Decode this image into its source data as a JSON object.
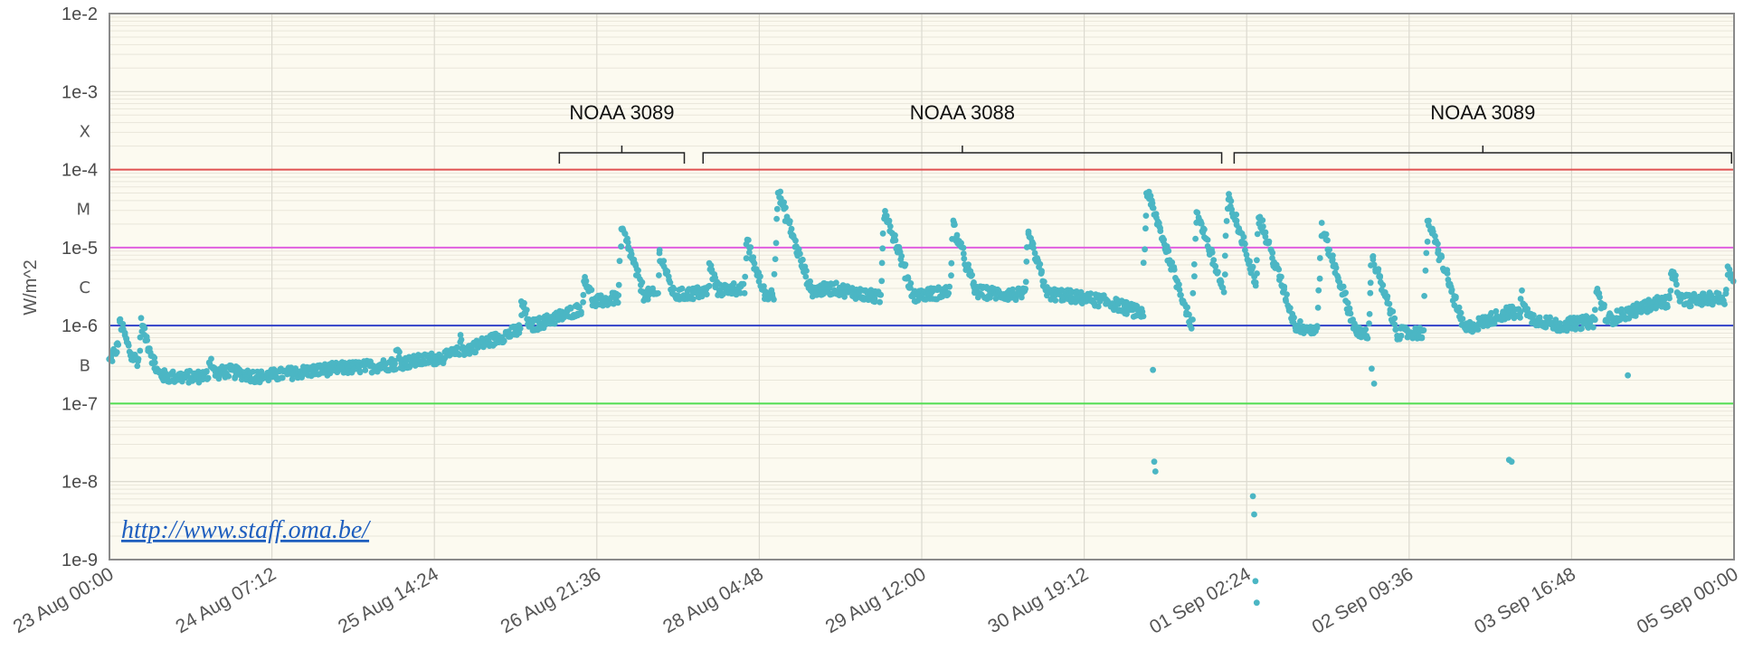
{
  "chart_data": {
    "type": "scatter",
    "title": "",
    "ylabel": "W/m^2",
    "xlabel": "",
    "y_scale": "log",
    "ylim": [
      "1e-9",
      "1e-2"
    ],
    "y_ticks": [
      "1e-2",
      "1e-3",
      "1e-4",
      "1e-5",
      "1e-6",
      "1e-7",
      "1e-8",
      "1e-9"
    ],
    "flare_classes": [
      "X",
      "M",
      "C",
      "B"
    ],
    "x_ticks": [
      "23 Aug 00:00",
      "24 Aug 07:12",
      "25 Aug 14:24",
      "26 Aug 21:36",
      "28 Aug 04:48",
      "29 Aug 12:00",
      "30 Aug 19:12",
      "01 Sep 02:24",
      "02 Sep 09:36",
      "03 Sep 16:48",
      "05 Sep 00:00"
    ],
    "x_range_days": [
      0,
      13
    ],
    "grid": true,
    "threshold_lines": [
      {
        "value": "1e-4",
        "color": "#e05050"
      },
      {
        "value": "1e-5",
        "color": "#e060e0"
      },
      {
        "value": "1e-6",
        "color": "#3040c8"
      },
      {
        "value": "1e-7",
        "color": "#50dd50"
      }
    ],
    "series": [
      {
        "color": "#4bb6c4",
        "flux_background": [
          [
            0.0,
            3.5e-07
          ],
          [
            0.08,
            6e-07
          ],
          [
            0.18,
            4e-07
          ],
          [
            0.3,
            3e-07
          ],
          [
            0.45,
            2.2e-07
          ],
          [
            0.7,
            2.2e-07
          ],
          [
            0.95,
            2.6e-07
          ],
          [
            1.2,
            2.2e-07
          ],
          [
            1.5,
            2.5e-07
          ],
          [
            1.8,
            2.8e-07
          ],
          [
            2.1,
            3e-07
          ],
          [
            2.4,
            3.4e-07
          ],
          [
            2.7,
            4e-07
          ],
          [
            3.0,
            6e-07
          ],
          [
            3.3,
            9e-07
          ],
          [
            3.6,
            1.3e-06
          ],
          [
            3.9,
            2e-06
          ],
          [
            4.2,
            2.5e-06
          ],
          [
            4.6,
            2.5e-06
          ],
          [
            5.0,
            3e-06
          ],
          [
            5.3,
            2.5e-06
          ],
          [
            5.8,
            3e-06
          ],
          [
            6.2,
            2.2e-06
          ],
          [
            6.8,
            2.8e-06
          ],
          [
            7.2,
            2.5e-06
          ],
          [
            7.6,
            2.5e-06
          ],
          [
            8.0,
            2e-06
          ],
          [
            8.4,
            1.2e-06
          ],
          [
            8.8,
            1e-06
          ],
          [
            9.2,
            1.3e-06
          ],
          [
            9.6,
            9e-07
          ],
          [
            10.0,
            8e-07
          ],
          [
            10.4,
            8e-07
          ],
          [
            10.8,
            8.5e-07
          ],
          [
            11.2,
            1.5e-06
          ],
          [
            11.6,
            1e-06
          ],
          [
            12.0,
            1.2e-06
          ],
          [
            12.4,
            2e-06
          ],
          [
            12.8,
            2.2e-06
          ],
          [
            13.0,
            2.3e-06
          ]
        ],
        "flares": [
          {
            "t": 0.08,
            "peak": 1.2e-06
          },
          {
            "t": 0.25,
            "peak": 1.1e-06
          },
          {
            "t": 0.8,
            "peak": 4e-07
          },
          {
            "t": 2.3,
            "peak": 5e-07
          },
          {
            "t": 2.8,
            "peak": 7e-07
          },
          {
            "t": 3.3,
            "peak": 2e-06
          },
          {
            "t": 3.8,
            "peak": 4.5e-06
          },
          {
            "t": 4.1,
            "peak": 1.8e-05
          },
          {
            "t": 4.4,
            "peak": 9e-06
          },
          {
            "t": 4.8,
            "peak": 6e-06
          },
          {
            "t": 5.1,
            "peak": 1.2e-05
          },
          {
            "t": 5.35,
            "peak": 5.2e-05
          },
          {
            "t": 6.2,
            "peak": 3.2e-05
          },
          {
            "t": 6.75,
            "peak": 2e-05
          },
          {
            "t": 7.35,
            "peak": 1.5e-05
          },
          {
            "t": 8.3,
            "peak": 5.5e-05
          },
          {
            "t": 8.7,
            "peak": 3e-05
          },
          {
            "t": 8.95,
            "peak": 4.5e-05
          },
          {
            "t": 9.2,
            "peak": 2.5e-05
          },
          {
            "t": 9.7,
            "peak": 1.8e-05
          },
          {
            "t": 10.1,
            "peak": 8e-06
          },
          {
            "t": 10.55,
            "peak": 2.3e-05
          },
          {
            "t": 11.3,
            "peak": 2.5e-06
          },
          {
            "t": 11.9,
            "peak": 3e-06
          },
          {
            "t": 12.5,
            "peak": 5e-06
          },
          {
            "t": 12.95,
            "peak": 6e-06
          }
        ],
        "outliers": [
          [
            8.35,
            2.7e-07
          ],
          [
            8.36,
            1.8e-08
          ],
          [
            8.37,
            1.35e-08
          ],
          [
            9.15,
            6.5e-09
          ],
          [
            9.16,
            3.8e-09
          ],
          [
            9.17,
            5.3e-10
          ],
          [
            9.18,
            2.8e-10
          ],
          [
            10.1,
            2.8e-07
          ],
          [
            10.12,
            1.8e-07
          ],
          [
            11.2,
            1.9e-08
          ],
          [
            11.22,
            1.8e-08
          ],
          [
            12.15,
            2.3e-07
          ]
        ]
      }
    ],
    "annotations": [
      {
        "text": "NOAA 3089",
        "bracket_days": [
          3.6,
          4.6
        ]
      },
      {
        "text": "NOAA 3088",
        "bracket_days": [
          4.75,
          8.9
        ]
      },
      {
        "text": "NOAA 3089",
        "bracket_days": [
          9.0,
          12.98
        ]
      }
    ],
    "source_link": "http://www.staff.oma.be/"
  }
}
